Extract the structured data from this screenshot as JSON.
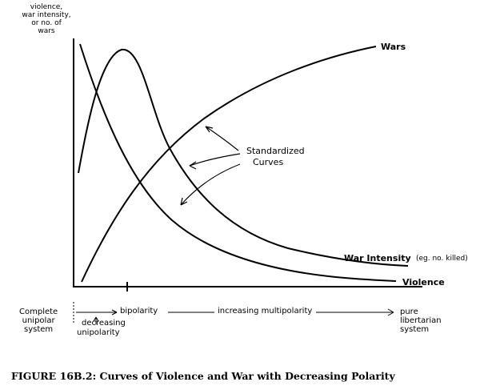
{
  "yaxis_label": [
    "violence,",
    "war intensity,",
    "or no. of",
    "wars"
  ],
  "curves": {
    "wars": "Wars",
    "war_intensity": "War Intensity",
    "war_intensity_note": "(eg. no. killed)",
    "violence": "Violence"
  },
  "annotation": [
    "Standardized",
    "Curves"
  ],
  "xaxis": {
    "complete_unipolar": [
      "Complete",
      "unipolar",
      "system"
    ],
    "decreasing_unipolarity": [
      "decreasing",
      "unipolarity"
    ],
    "bipolarity": "bipolarity",
    "increasing_multipolarity": "increasing  multipolarity",
    "pure_libertarian": [
      "pure",
      "libertarian",
      "system"
    ]
  },
  "caption": "FIGURE 16B.2:  Curves of Violence and War with Decreasing Polarity"
}
